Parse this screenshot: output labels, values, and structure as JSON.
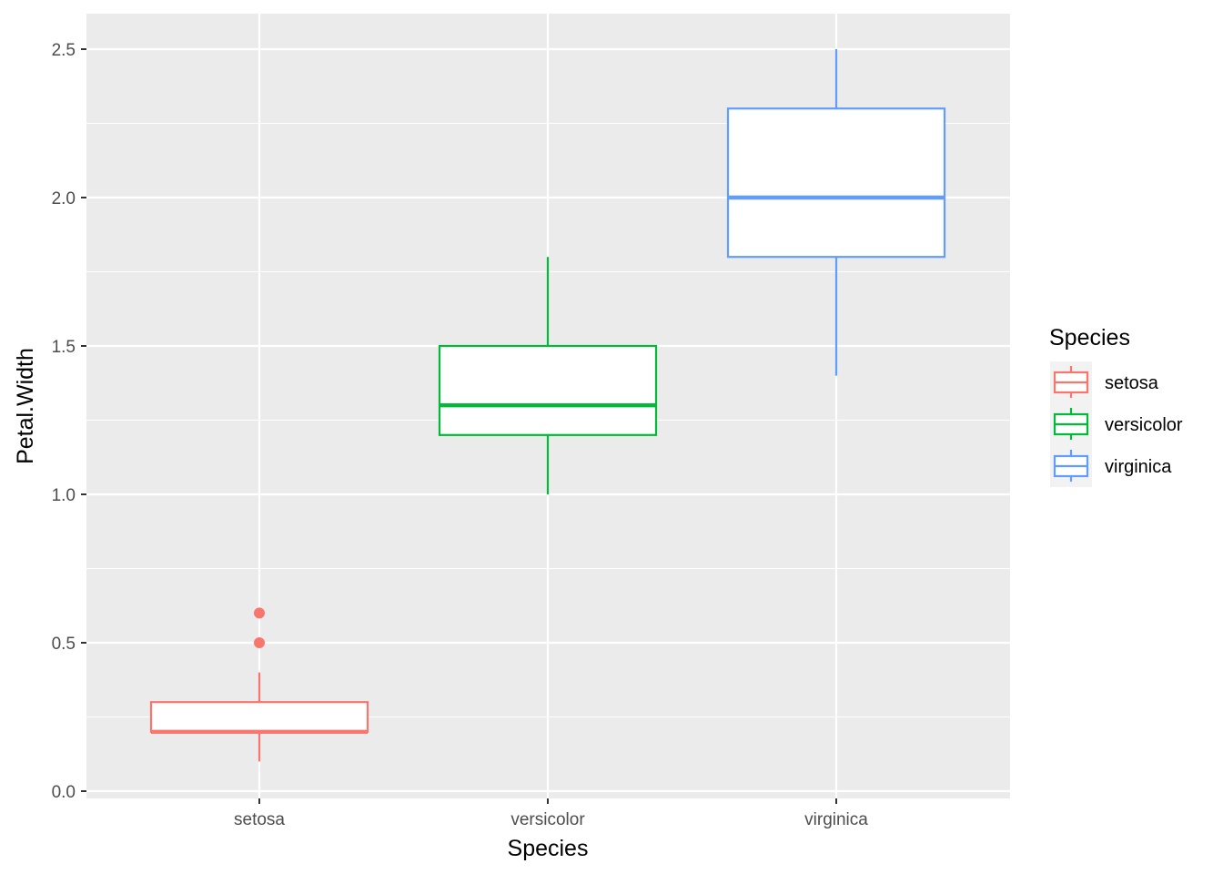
{
  "chart_data": {
    "type": "boxplot",
    "xlabel": "Species",
    "ylabel": "Petal.Width",
    "categories": [
      "setosa",
      "versicolor",
      "virginica"
    ],
    "ylim": [
      0,
      2.5
    ],
    "y_ticks": [
      "0.0",
      "0.5",
      "1.0",
      "1.5",
      "2.0",
      "2.5"
    ],
    "grid": true,
    "legend": {
      "title": "Species",
      "position": "right",
      "entries": [
        "setosa",
        "versicolor",
        "virginica"
      ]
    },
    "series": [
      {
        "category": "setosa",
        "color": "#F8766D",
        "whisker_low": 0.1,
        "q1": 0.2,
        "median": 0.2,
        "q3": 0.3,
        "whisker_high": 0.4,
        "outliers": [
          0.5,
          0.6
        ]
      },
      {
        "category": "versicolor",
        "color": "#00BA38",
        "whisker_low": 1.0,
        "q1": 1.2,
        "median": 1.3,
        "q3": 1.5,
        "whisker_high": 1.8,
        "outliers": []
      },
      {
        "category": "virginica",
        "color": "#619CFF",
        "whisker_low": 1.4,
        "q1": 1.8,
        "median": 2.0,
        "q3": 2.3,
        "whisker_high": 2.5,
        "outliers": []
      }
    ],
    "colors": {
      "panel_background": "#EBEBEB",
      "grid_line": "#FFFFFF",
      "box_fill": "#FFFFFF"
    }
  }
}
